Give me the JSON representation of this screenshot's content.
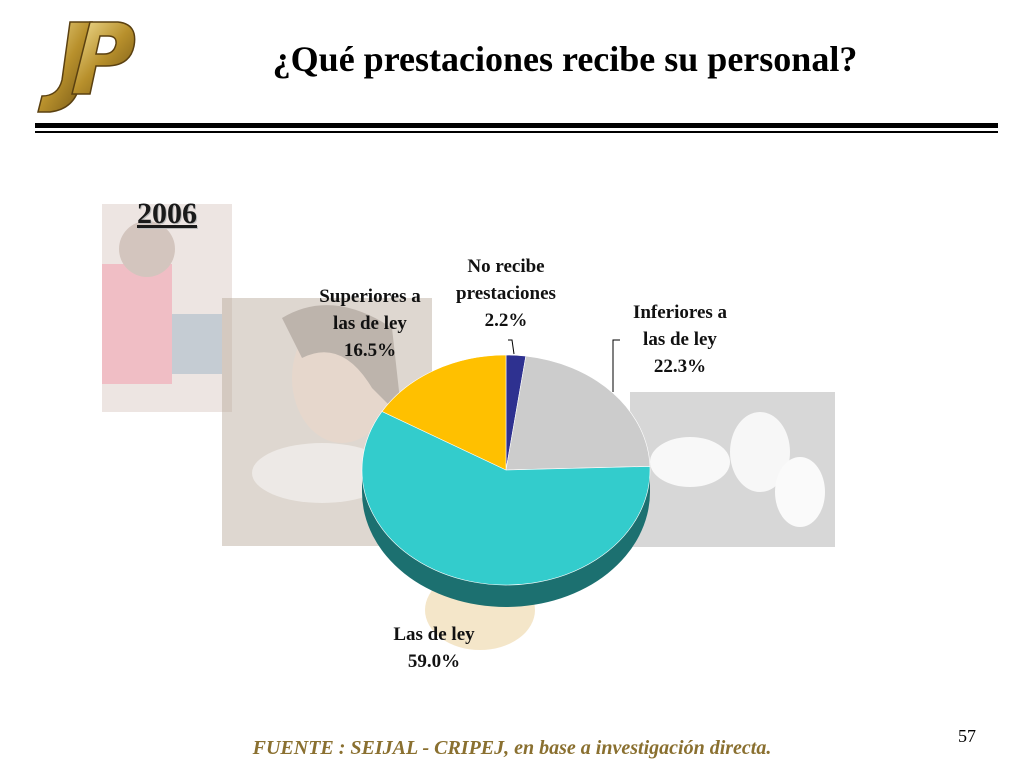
{
  "slide": {
    "title": "¿Qué prestaciones recibe su personal?",
    "year": "2006",
    "source": "FUENTE :  SEIJAL - CRIPEJ,  en base a investigación directa.",
    "page_number": "57",
    "logo_text": "JP"
  },
  "chart_data": {
    "type": "pie",
    "title": "",
    "slices": [
      {
        "label_lines": [
          "No recibe",
          "prestaciones"
        ],
        "value": 2.2,
        "value_label": "2.2%",
        "color": "#2e3190"
      },
      {
        "label_lines": [
          "Inferiores a",
          "las de ley"
        ],
        "value": 22.3,
        "value_label": "22.3%",
        "color": "#cccccc"
      },
      {
        "label_lines": [
          "Las de ley"
        ],
        "value": 59.0,
        "value_label": "59.0%",
        "color": "#33cccc"
      },
      {
        "label_lines": [
          "Superiores a",
          "las de ley"
        ],
        "value": 16.5,
        "value_label": "16.5%",
        "color": "#ffc000"
      }
    ]
  }
}
